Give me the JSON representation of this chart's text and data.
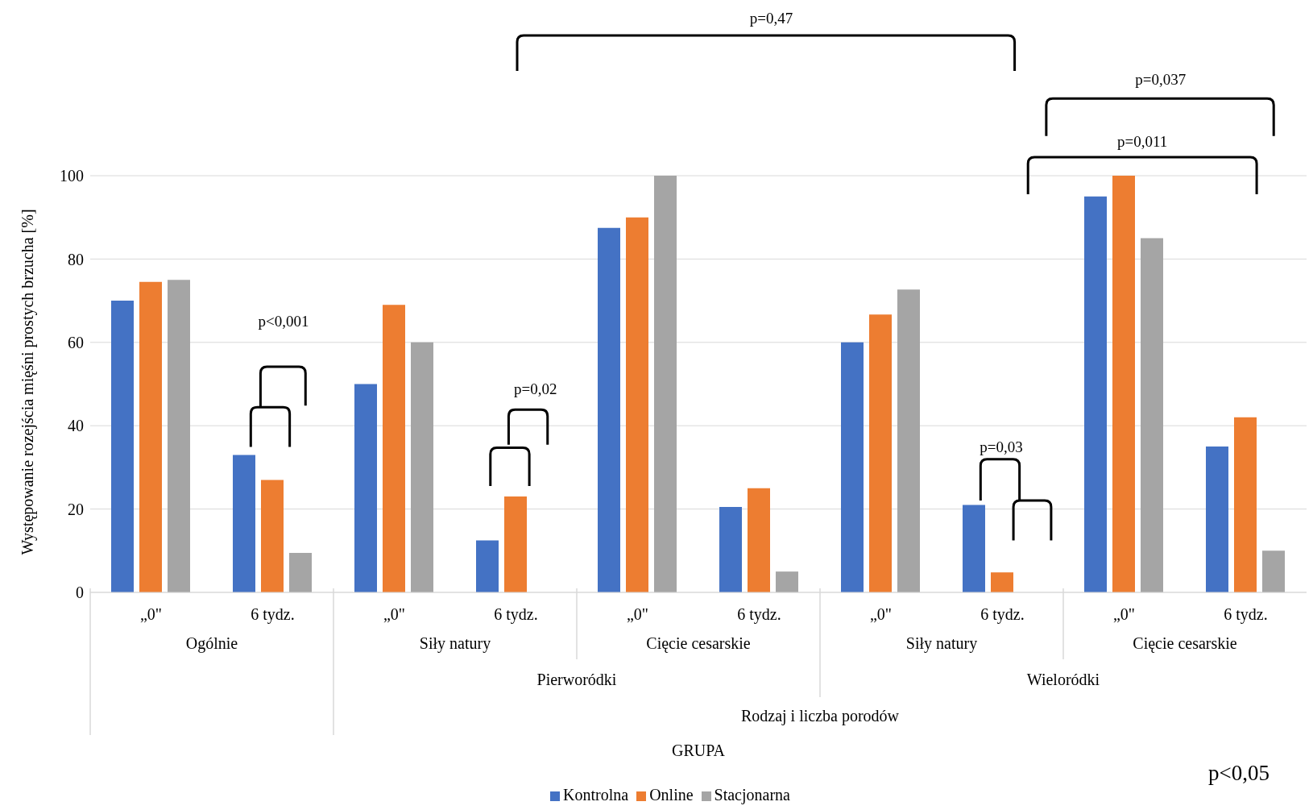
{
  "chart_data": {
    "type": "bar",
    "ylabel": "Występowanie rozejścia mięśni prostych brzucha [%]",
    "categories": [
      "„0\"",
      "6 tydz.",
      "„0\"",
      "6 tydz.",
      "„0\"",
      "6 tydz.",
      "„0\"",
      "6 tydz.",
      "„0\"",
      "6 tydz."
    ],
    "series": [
      {
        "name": "Kontrolna",
        "color": "#4472c4",
        "values": [
          70,
          33,
          50,
          12.5,
          87.5,
          20.5,
          60,
          21,
          95,
          35
        ]
      },
      {
        "name": "Online",
        "color": "#ed7d31",
        "values": [
          74.5,
          27,
          69,
          23,
          90,
          25,
          66.7,
          4.8,
          100,
          42
        ]
      },
      {
        "name": "Stacjonarna",
        "color": "#a5a5a5",
        "values": [
          75,
          9.5,
          60,
          0,
          100,
          5,
          72.7,
          0,
          85,
          10
        ]
      }
    ],
    "ylim": [
      0,
      100
    ],
    "yticks": [
      0,
      20,
      40,
      60,
      80,
      100
    ],
    "grid": "y",
    "legend": "bottom",
    "annotations": [
      "p=0,47",
      "p=0,037",
      "p=0,011",
      "p<0,001",
      "p=0,02",
      "p=0,03",
      "Ogólnie",
      "Siły natury",
      "Cięcie cesarskie",
      "Siły natury",
      "Cięcie cesarskie",
      "Pierworódki",
      "Wieloródki",
      "Rodzaj i liczba porodów",
      "GRUPA",
      "p<0,05"
    ]
  }
}
